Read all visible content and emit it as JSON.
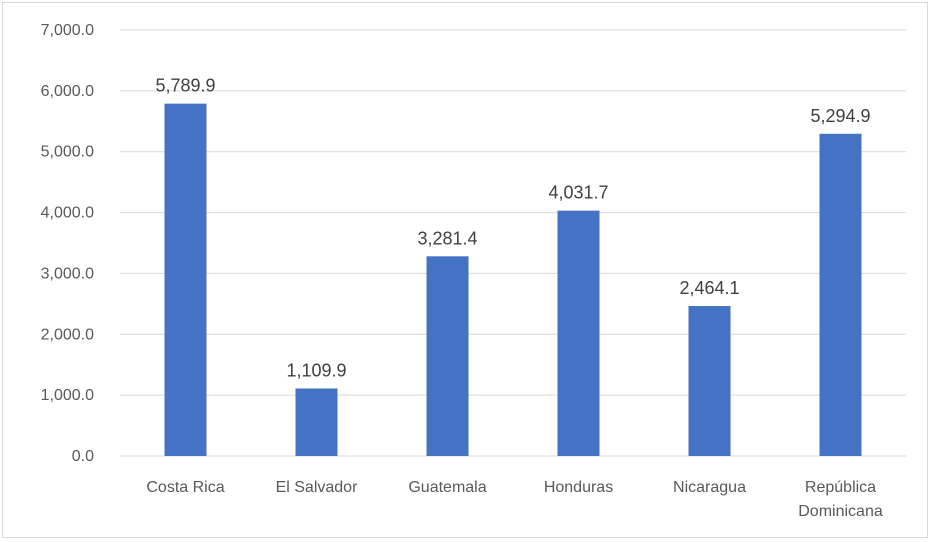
{
  "chart_data": {
    "type": "bar",
    "title": "",
    "xlabel": "",
    "ylabel": "",
    "categories": [
      "Costa Rica",
      "El Salvador",
      "Guatemala",
      "Honduras",
      "Nicaragua",
      "República Dominicana"
    ],
    "category_lines": [
      [
        "Costa Rica"
      ],
      [
        "El Salvador"
      ],
      [
        "Guatemala"
      ],
      [
        "Honduras"
      ],
      [
        "Nicaragua"
      ],
      [
        "República",
        "Dominicana"
      ]
    ],
    "values": [
      5789.9,
      1109.9,
      3281.4,
      4031.7,
      2464.1,
      5294.9
    ],
    "value_labels": [
      "5,789.9",
      "1,109.9",
      "3,281.4",
      "4,031.7",
      "2,464.1",
      "5,294.9"
    ],
    "ylim": [
      0,
      7000
    ],
    "yticks": [
      0,
      1000,
      2000,
      3000,
      4000,
      5000,
      6000,
      7000
    ],
    "ytick_labels": [
      "0.0",
      "1,000.0",
      "2,000.0",
      "3,000.0",
      "4,000.0",
      "5,000.0",
      "6,000.0",
      "7,000.0"
    ],
    "grid": true,
    "legend": "none",
    "colors": {
      "bar": "#4472c4",
      "grid": "#d9d9d9",
      "axis_text": "#595959",
      "data_label_text": "#404040"
    }
  }
}
